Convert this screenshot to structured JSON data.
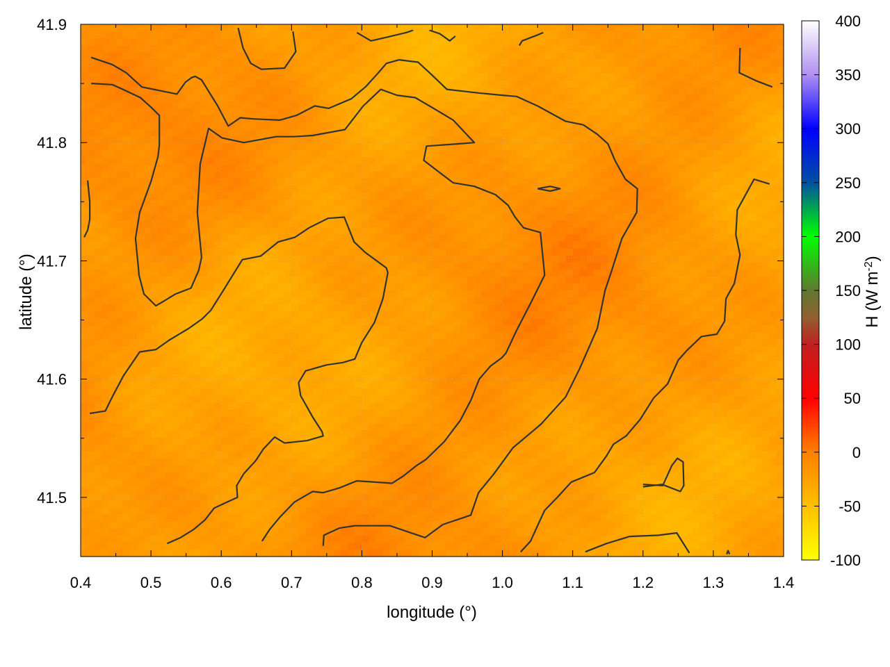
{
  "chart_data": {
    "type": "heatmap",
    "xlabel": "longitude (°)",
    "ylabel": "latitude (°)",
    "colorbar_label_main": "H (W m",
    "colorbar_label_sup": "-2",
    "colorbar_label_close": ")",
    "xlim": [
      0.4,
      1.4
    ],
    "ylim": [
      41.45,
      41.9
    ],
    "x_ticks": [
      0.4,
      0.5,
      0.6,
      0.7,
      0.8,
      0.9,
      1.0,
      1.1,
      1.2,
      1.3,
      1.4
    ],
    "x_tick_labels": [
      "0.4",
      "0.5",
      "0.6",
      "0.7",
      "0.8",
      "0.9",
      "1.0",
      "1.1",
      "1.2",
      "1.3",
      "1.4"
    ],
    "y_ticks": [
      41.5,
      41.6,
      41.7,
      41.8,
      41.9
    ],
    "y_tick_labels": [
      "41.5",
      "41.6",
      "41.7",
      "41.8",
      "41.9"
    ],
    "colorbar_range": [
      -100,
      400
    ],
    "colorbar_ticks": [
      -100,
      -50,
      0,
      50,
      100,
      150,
      200,
      250,
      300,
      350,
      400
    ],
    "colorbar_tick_labels": [
      "-100",
      "-50",
      "0",
      "50",
      "100",
      "150",
      "200",
      "250",
      "300",
      "350",
      "400"
    ],
    "colormap": [
      {
        "value": -100,
        "color": "#ffff00"
      },
      {
        "value": -50,
        "color": "#ffc000"
      },
      {
        "value": 0,
        "color": "#ff8000"
      },
      {
        "value": 50,
        "color": "#ff0000"
      },
      {
        "value": 100,
        "color": "#c02020"
      },
      {
        "value": 125,
        "color": "#906030"
      },
      {
        "value": 150,
        "color": "#607830"
      },
      {
        "value": 200,
        "color": "#00ff00"
      },
      {
        "value": 250,
        "color": "#0050a0"
      },
      {
        "value": 300,
        "color": "#0000ff"
      },
      {
        "value": 350,
        "color": "#b090f0"
      },
      {
        "value": 400,
        "color": "#ffffff"
      }
    ],
    "field_range_approx": [
      -45,
      5
    ],
    "grid": "dotted",
    "contour_color": "#333333",
    "contour_lines": [
      [
        [
          0.415,
          41.872
        ],
        [
          0.445,
          41.866
        ],
        [
          0.465,
          41.859
        ],
        [
          0.487,
          41.847
        ],
        [
          0.537,
          41.841
        ],
        [
          0.549,
          41.851
        ],
        [
          0.558,
          41.855
        ],
        [
          0.563,
          41.856
        ],
        [
          0.572,
          41.853
        ],
        [
          0.595,
          41.831
        ],
        [
          0.61,
          41.814
        ],
        [
          0.627,
          41.821
        ],
        [
          0.647,
          41.82
        ],
        [
          0.683,
          41.819
        ],
        [
          0.707,
          41.823
        ],
        [
          0.733,
          41.831
        ],
        [
          0.753,
          41.829
        ],
        [
          0.785,
          41.837
        ],
        [
          0.805,
          41.847
        ],
        [
          0.822,
          41.858
        ],
        [
          0.835,
          41.867
        ],
        [
          0.853,
          41.87
        ],
        [
          0.88,
          41.868
        ],
        [
          0.9,
          41.857
        ],
        [
          0.921,
          41.845
        ],
        [
          0.965,
          41.842
        ],
        [
          1.0,
          41.84
        ],
        [
          1.02,
          41.839
        ],
        [
          1.05,
          41.831
        ],
        [
          1.09,
          41.818
        ],
        [
          1.115,
          41.815
        ],
        [
          1.135,
          41.807
        ],
        [
          1.15,
          41.799
        ],
        [
          1.16,
          41.785
        ],
        [
          1.175,
          41.769
        ],
        [
          1.192,
          41.761
        ],
        [
          1.191,
          41.741
        ],
        [
          1.17,
          41.719
        ],
        [
          1.155,
          41.691
        ],
        [
          1.146,
          41.675
        ],
        [
          1.135,
          41.643
        ],
        [
          1.11,
          41.609
        ],
        [
          1.09,
          41.585
        ],
        [
          1.055,
          41.562
        ],
        [
          1.015,
          41.542
        ],
        [
          0.988,
          41.52
        ],
        [
          0.966,
          41.504
        ],
        [
          0.955,
          41.485
        ],
        [
          0.915,
          41.477
        ],
        [
          0.89,
          41.466
        ],
        [
          0.84,
          41.476
        ],
        [
          0.79,
          41.476
        ],
        [
          0.768,
          41.474
        ],
        [
          0.746,
          41.468
        ],
        [
          0.745,
          41.459
        ]
      ],
      [
        [
          0.415,
          41.85
        ],
        [
          0.445,
          41.849
        ],
        [
          0.46,
          41.845
        ],
        [
          0.485,
          41.838
        ],
        [
          0.5,
          41.83
        ],
        [
          0.512,
          41.823
        ],
        [
          0.512,
          41.798
        ],
        [
          0.51,
          41.788
        ],
        [
          0.5,
          41.767
        ],
        [
          0.484,
          41.741
        ],
        [
          0.478,
          41.719
        ],
        [
          0.482,
          41.695
        ],
        [
          0.483,
          41.688
        ],
        [
          0.49,
          41.672
        ],
        [
          0.507,
          41.662
        ],
        [
          0.513,
          41.664
        ],
        [
          0.535,
          41.672
        ],
        [
          0.557,
          41.677
        ],
        [
          0.568,
          41.692
        ],
        [
          0.572,
          41.703
        ],
        [
          0.566,
          41.741
        ],
        [
          0.57,
          41.782
        ],
        [
          0.582,
          41.812
        ],
        [
          0.601,
          41.804
        ],
        [
          0.632,
          41.8
        ],
        [
          0.678,
          41.805
        ],
        [
          0.703,
          41.805
        ],
        [
          0.73,
          41.806
        ],
        [
          0.776,
          41.811
        ],
        [
          0.802,
          41.831
        ],
        [
          0.827,
          41.845
        ],
        [
          0.85,
          41.84
        ],
        [
          0.876,
          41.838
        ],
        [
          0.902,
          41.829
        ],
        [
          0.93,
          41.819
        ],
        [
          0.96,
          41.8
        ],
        [
          0.939,
          41.799
        ],
        [
          0.892,
          41.797
        ],
        [
          0.888,
          41.785
        ],
        [
          0.91,
          41.775
        ],
        [
          0.93,
          41.766
        ],
        [
          0.96,
          41.763
        ],
        [
          0.99,
          41.756
        ],
        [
          1.008,
          41.747
        ],
        [
          1.018,
          41.737
        ],
        [
          1.03,
          41.728
        ],
        [
          1.054,
          41.724
        ],
        [
          1.06,
          41.688
        ],
        [
          1.04,
          41.664
        ],
        [
          1.02,
          41.641
        ],
        [
          1.005,
          41.622
        ],
        [
          0.999,
          41.618
        ],
        [
          0.983,
          41.611
        ],
        [
          0.967,
          41.6
        ],
        [
          0.955,
          41.582
        ],
        [
          0.94,
          41.565
        ],
        [
          0.917,
          41.547
        ],
        [
          0.891,
          41.532
        ],
        [
          0.878,
          41.527
        ],
        [
          0.859,
          41.518
        ],
        [
          0.843,
          41.512
        ],
        [
          0.793,
          41.514
        ],
        [
          0.768,
          41.508
        ],
        [
          0.745,
          41.504
        ],
        [
          0.73,
          41.505
        ],
        [
          0.704,
          41.496
        ],
        [
          0.683,
          41.483
        ],
        [
          0.669,
          41.473
        ],
        [
          0.658,
          41.463
        ]
      ],
      [
        [
          0.413,
          41.571
        ],
        [
          0.435,
          41.573
        ],
        [
          0.445,
          41.585
        ],
        [
          0.461,
          41.603
        ],
        [
          0.484,
          41.623
        ],
        [
          0.507,
          41.625
        ],
        [
          0.526,
          41.633
        ],
        [
          0.554,
          41.643
        ],
        [
          0.573,
          41.651
        ],
        [
          0.585,
          41.658
        ],
        [
          0.605,
          41.677
        ],
        [
          0.63,
          41.701
        ],
        [
          0.656,
          41.704
        ],
        [
          0.681,
          41.716
        ],
        [
          0.705,
          41.72
        ],
        [
          0.725,
          41.728
        ],
        [
          0.752,
          41.736
        ],
        [
          0.775,
          41.737
        ],
        [
          0.789,
          41.716
        ],
        [
          0.805,
          41.707
        ],
        [
          0.835,
          41.694
        ],
        [
          0.837,
          41.69
        ],
        [
          0.83,
          41.668
        ],
        [
          0.818,
          41.648
        ],
        [
          0.8,
          41.631
        ],
        [
          0.79,
          41.617
        ],
        [
          0.773,
          41.614
        ],
        [
          0.75,
          41.612
        ],
        [
          0.72,
          41.607
        ],
        [
          0.71,
          41.597
        ],
        [
          0.713,
          41.586
        ],
        [
          0.73,
          41.568
        ],
        [
          0.743,
          41.556
        ],
        [
          0.745,
          41.552
        ],
        [
          0.722,
          41.548
        ],
        [
          0.69,
          41.546
        ],
        [
          0.676,
          41.551
        ],
        [
          0.66,
          41.541
        ],
        [
          0.649,
          41.531
        ],
        [
          0.632,
          41.52
        ],
        [
          0.622,
          41.51
        ],
        [
          0.623,
          41.5
        ],
        [
          0.608,
          41.496
        ],
        [
          0.59,
          41.491
        ],
        [
          0.577,
          41.481
        ],
        [
          0.561,
          41.473
        ],
        [
          0.542,
          41.466
        ],
        [
          0.523,
          41.461
        ]
      ],
      [
        [
          0.405,
          41.72
        ],
        [
          0.41,
          41.726
        ],
        [
          0.413,
          41.735
        ],
        [
          0.413,
          41.75
        ],
        [
          0.41,
          41.768
        ]
      ],
      [
        [
          0.624,
          41.897
        ],
        [
          0.631,
          41.88
        ],
        [
          0.642,
          41.867
        ],
        [
          0.657,
          41.862
        ],
        [
          0.69,
          41.863
        ],
        [
          0.706,
          41.877
        ],
        [
          0.702,
          41.894
        ]
      ],
      [
        [
          0.793,
          41.893
        ],
        [
          0.813,
          41.886
        ],
        [
          0.835,
          41.889
        ],
        [
          0.863,
          41.893
        ],
        [
          0.873,
          41.895
        ]
      ],
      [
        [
          0.896,
          41.895
        ],
        [
          0.911,
          41.892
        ],
        [
          0.925,
          41.886
        ],
        [
          0.933,
          41.89
        ]
      ],
      [
        [
          1.024,
          41.882
        ],
        [
          1.028,
          41.886
        ],
        [
          1.05,
          41.891
        ],
        [
          1.058,
          41.893
        ]
      ],
      [
        [
          1.05,
          41.761
        ],
        [
          1.068,
          41.763
        ],
        [
          1.082,
          41.761
        ],
        [
          1.068,
          41.759
        ],
        [
          1.05,
          41.761
        ]
      ],
      [
        [
          1.338,
          41.88
        ],
        [
          1.337,
          41.859
        ],
        [
          1.362,
          41.852
        ],
        [
          1.384,
          41.847
        ]
      ],
      [
        [
          1.38,
          41.765
        ],
        [
          1.358,
          41.769
        ],
        [
          1.334,
          41.743
        ],
        [
          1.332,
          41.722
        ],
        [
          1.338,
          41.705
        ],
        [
          1.33,
          41.681
        ],
        [
          1.318,
          41.668
        ],
        [
          1.316,
          41.649
        ],
        [
          1.305,
          41.638
        ],
        [
          1.283,
          41.636
        ],
        [
          1.262,
          41.624
        ],
        [
          1.25,
          41.616
        ],
        [
          1.244,
          41.608
        ],
        [
          1.235,
          41.596
        ],
        [
          1.215,
          41.584
        ],
        [
          1.196,
          41.566
        ],
        [
          1.176,
          41.552
        ],
        [
          1.158,
          41.545
        ],
        [
          1.148,
          41.535
        ],
        [
          1.131,
          41.521
        ],
        [
          1.098,
          41.513
        ],
        [
          1.078,
          41.5
        ],
        [
          1.06,
          41.489
        ],
        [
          1.053,
          41.48
        ],
        [
          1.04,
          41.463
        ],
        [
          1.026,
          41.454
        ]
      ],
      [
        [
          1.2,
          41.509
        ],
        [
          1.227,
          41.511
        ],
        [
          1.253,
          41.505
        ],
        [
          1.258,
          41.51
        ],
        [
          1.257,
          41.53
        ],
        [
          1.249,
          41.533
        ],
        [
          1.241,
          41.527
        ],
        [
          1.228,
          41.51
        ],
        [
          1.2,
          41.511
        ]
      ],
      [
        [
          1.118,
          41.454
        ],
        [
          1.148,
          41.461
        ],
        [
          1.181,
          41.467
        ],
        [
          1.222,
          41.468
        ],
        [
          1.248,
          41.47
        ],
        [
          1.266,
          41.453
        ]
      ],
      [
        [
          1.319,
          41.452
        ],
        [
          1.321,
          41.455
        ],
        [
          1.323,
          41.452
        ]
      ]
    ]
  }
}
